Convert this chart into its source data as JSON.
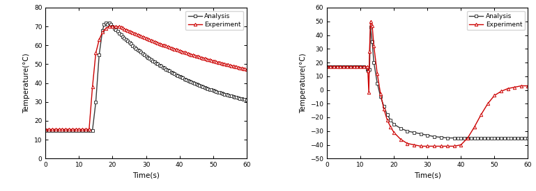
{
  "left": {
    "xlabel": "Time(s)",
    "ylabel": "Temperature(°C)",
    "xlim": [
      0,
      60
    ],
    "ylim": [
      0,
      80
    ],
    "yticks": [
      0,
      10,
      20,
      30,
      40,
      50,
      60,
      70,
      80
    ],
    "xticks": [
      0,
      10,
      20,
      30,
      40,
      50,
      60
    ],
    "analysis_color": "#3a3a3a",
    "experiment_color": "#cc0000",
    "analysis_marker": "s",
    "experiment_marker": "^"
  },
  "right": {
    "xlabel": "Time(s)",
    "ylabel": "Temperature(°C)",
    "xlim": [
      0,
      60
    ],
    "ylim": [
      -50,
      60
    ],
    "yticks": [
      -50,
      -40,
      -30,
      -20,
      -10,
      0,
      10,
      20,
      30,
      40,
      50,
      60
    ],
    "xticks": [
      0,
      10,
      20,
      30,
      40,
      50,
      60
    ],
    "analysis_color": "#3a3a3a",
    "experiment_color": "#cc0000",
    "analysis_marker": "s",
    "experiment_marker": "^"
  }
}
